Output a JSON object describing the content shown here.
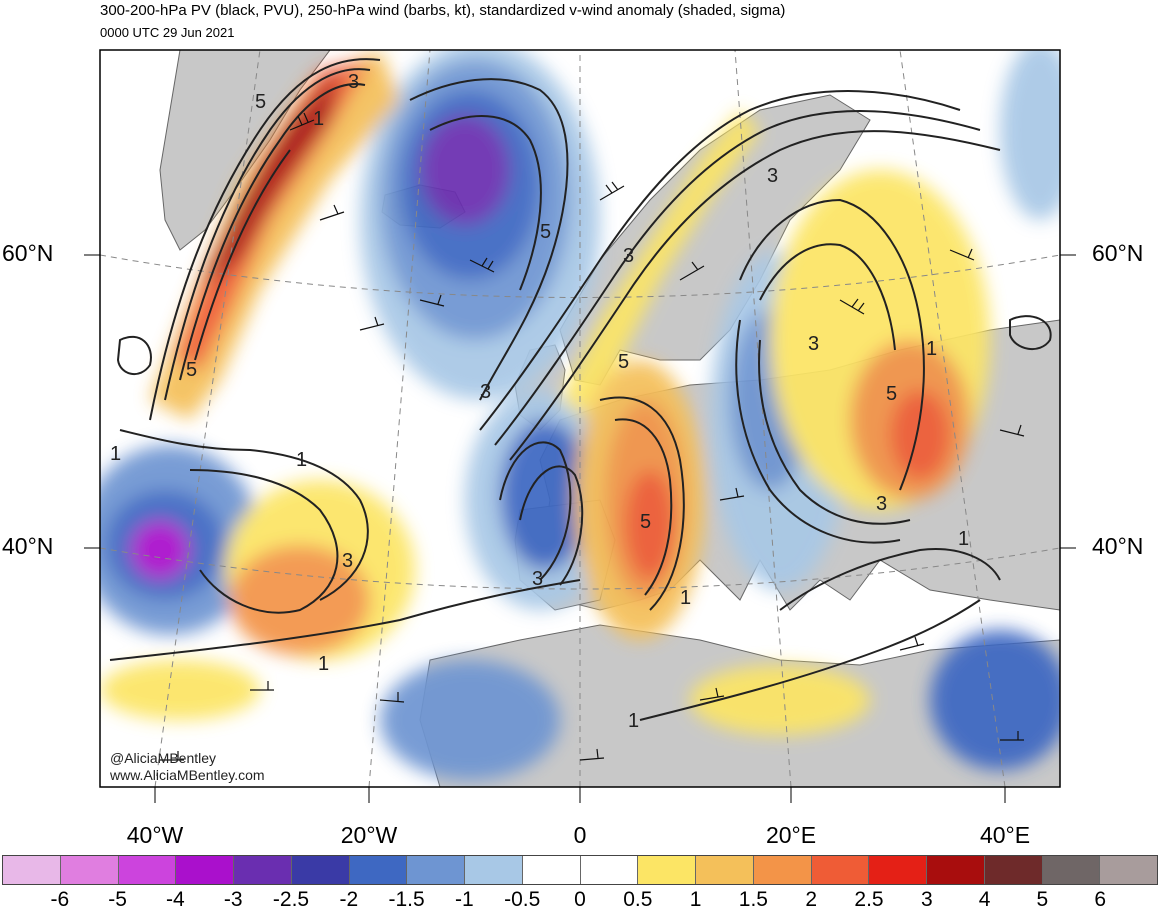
{
  "header": {
    "title": "300-200-hPa PV (black, PVU), 250-hPa wind (barbs, kt), standardized v-wind anomaly (shaded, sigma)",
    "valid_time": "0000 UTC 29 Jun 2021"
  },
  "map": {
    "lat_labels": [
      "60°N",
      "40°N"
    ],
    "lon_labels": [
      "40°W",
      "20°W",
      "0",
      "20°E",
      "40°E"
    ],
    "pv_contour_labels": [
      "5",
      "1",
      "3",
      "5",
      "3",
      "1",
      "3",
      "5",
      "1",
      "1",
      "3",
      "3",
      "5",
      "3",
      "1",
      "5",
      "3",
      "1",
      "3",
      "5",
      "1",
      "1"
    ],
    "credit": [
      "@AliciaMBentley",
      "www.AliciaMBentley.com"
    ],
    "land_color": "#c8c8c8",
    "contour_color": "#222222"
  },
  "colorbar": {
    "tick_labels": [
      "-6",
      "-5",
      "-4",
      "-3",
      "-2.5",
      "-2",
      "-1.5",
      "-1",
      "-0.5",
      "0",
      "0.5",
      "1",
      "1.5",
      "2",
      "2.5",
      "3",
      "4",
      "5",
      "6"
    ],
    "colors": [
      "#e8b8e8",
      "#e07ee0",
      "#cc44dd",
      "#aa10cc",
      "#6a2eb0",
      "#3a3aa6",
      "#3e68c2",
      "#6e95d2",
      "#a8c8e6",
      "#ffffff",
      "#ffffff",
      "#fce565",
      "#f4c05a",
      "#f39448",
      "#ef5c36",
      "#e42016",
      "#a80d0d",
      "#6e2a2a",
      "#6f6666",
      "#a89c9c"
    ]
  }
}
